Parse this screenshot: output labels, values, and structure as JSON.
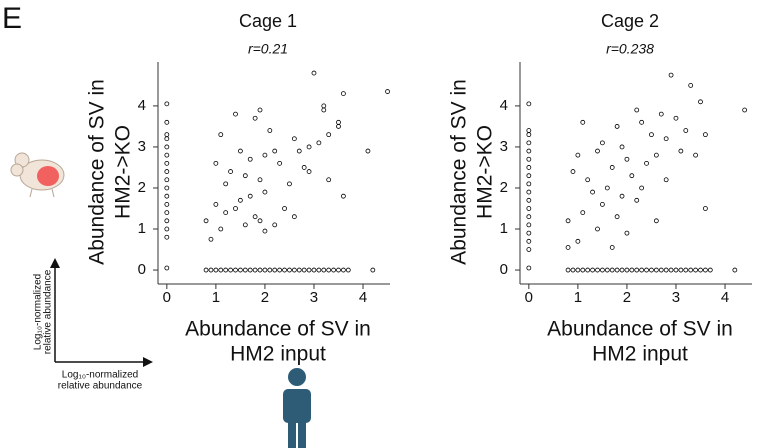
{
  "panel_label": "E",
  "key": {
    "x_label": [
      "Log₁₀-normalized",
      "relative abundance"
    ],
    "y_label": [
      "Log₁₀-normalized",
      "relative abundance"
    ]
  },
  "chart_data": [
    {
      "type": "scatter",
      "title": "Cage 1",
      "subtitle": "r=0.21",
      "xlabel": [
        "Abundance of SV in",
        "HM2 input"
      ],
      "ylabel": [
        "Abundance of SV in",
        "HM2->KO"
      ],
      "xlim": [
        -0.18,
        4.55
      ],
      "ylim": [
        -0.34,
        5.07
      ],
      "xticks": [
        0,
        1,
        2,
        3,
        4
      ],
      "yticks": [
        0,
        1,
        2,
        3,
        4
      ],
      "series": [
        {
          "color": "#000000",
          "x": [
            0,
            0,
            0,
            0,
            0,
            0,
            0,
            0,
            0,
            0,
            0,
            0,
            0,
            0,
            0,
            0,
            0,
            0.8,
            0.9,
            1.0,
            1.1,
            1.2,
            1.3,
            1.4,
            1.5,
            1.6,
            1.7,
            1.8,
            1.9,
            2.0,
            2.1,
            2.2,
            2.3,
            2.4,
            2.5,
            2.6,
            2.7,
            2.8,
            2.9,
            3.0,
            3.1,
            3.2,
            3.3,
            3.4,
            3.5,
            3.6,
            3.7,
            4.2,
            3.0,
            4.5,
            3.6,
            3.2,
            3.2,
            1.9,
            1.4,
            1.8,
            3.5,
            3.5,
            2.1,
            3.3,
            1.1,
            2.6,
            2.2,
            3.1,
            2.9,
            2.0,
            1.5,
            2.7,
            1.7,
            1.0,
            2.3,
            2.8,
            4.1,
            1.3,
            1.6,
            1.9,
            2.5,
            1.2,
            2.0,
            1.7,
            3.3,
            2.9,
            1.0,
            1.4,
            1.5,
            1.2,
            2.4,
            1.8,
            2.6,
            0.8,
            1.1,
            1.9,
            2.2,
            1.6,
            2.0,
            0.9,
            3.6
          ],
          "values": [
            4.05,
            3.6,
            3.3,
            3.2,
            3.0,
            2.8,
            2.6,
            2.4,
            2.2,
            2.0,
            1.8,
            1.6,
            1.4,
            1.2,
            1.0,
            0.8,
            0.05,
            0,
            0,
            0,
            0,
            0,
            0,
            0,
            0,
            0,
            0,
            0,
            0,
            0,
            0,
            0,
            0,
            0,
            0,
            0,
            0,
            0,
            0,
            0,
            0,
            0,
            0,
            0,
            0,
            0,
            0,
            0,
            4.8,
            4.35,
            4.3,
            4.0,
            3.9,
            3.9,
            3.8,
            3.7,
            3.6,
            3.5,
            3.4,
            3.3,
            3.3,
            3.2,
            2.9,
            3.1,
            3.0,
            2.8,
            2.9,
            2.9,
            2.7,
            2.6,
            2.6,
            2.5,
            2.9,
            2.4,
            2.3,
            2.2,
            2.1,
            2.1,
            1.9,
            1.8,
            2.2,
            2.4,
            1.6,
            1.5,
            1.7,
            1.4,
            1.5,
            1.3,
            1.3,
            1.2,
            1.0,
            1.2,
            1.1,
            1.1,
            0.95,
            0.75,
            1.8
          ]
        }
      ]
    },
    {
      "type": "scatter",
      "title": "Cage 2",
      "subtitle": "r=0.238",
      "xlabel": [
        "Abundance of SV in",
        "HM2 input"
      ],
      "ylabel": [
        "Abundance of SV in",
        "HM2->KO"
      ],
      "xlim": [
        -0.18,
        4.55
      ],
      "ylim": [
        -0.34,
        5.07
      ],
      "xticks": [
        0,
        1,
        2,
        3,
        4
      ],
      "yticks": [
        0,
        1,
        2,
        3,
        4
      ],
      "series": [
        {
          "color": "#000000",
          "x": [
            0,
            0,
            0,
            0,
            0,
            0,
            0,
            0,
            0,
            0,
            0,
            0,
            0,
            0,
            0,
            0,
            0,
            0,
            0.8,
            0.9,
            1.0,
            1.1,
            1.2,
            1.3,
            1.4,
            1.5,
            1.6,
            1.7,
            1.8,
            1.9,
            2.0,
            2.1,
            2.2,
            2.3,
            2.4,
            2.5,
            2.6,
            2.7,
            2.8,
            2.9,
            3.0,
            3.1,
            3.2,
            3.3,
            3.4,
            3.5,
            3.6,
            3.7,
            4.2,
            2.9,
            3.3,
            4.4,
            3.5,
            2.7,
            2.2,
            3.0,
            1.1,
            1.8,
            3.2,
            2.5,
            2.3,
            1.5,
            1.9,
            2.8,
            3.6,
            3.1,
            2.6,
            2.0,
            1.4,
            2.4,
            3.4,
            1.7,
            0.9,
            1.2,
            2.1,
            2.8,
            1.6,
            2.3,
            1.0,
            1.3,
            1.9,
            2.2,
            1.5,
            0.8,
            1.1,
            1.8,
            2.6,
            1.4,
            3.6,
            2.0,
            1.0,
            1.7,
            0.8
          ],
          "values": [
            4.05,
            3.4,
            3.3,
            3.1,
            2.9,
            2.7,
            2.5,
            2.3,
            2.1,
            1.9,
            1.7,
            1.5,
            1.3,
            1.1,
            0.9,
            0.7,
            0.5,
            0.05,
            0,
            0,
            0,
            0,
            0,
            0,
            0,
            0,
            0,
            0,
            0,
            0,
            0,
            0,
            0,
            0,
            0,
            0,
            0,
            0,
            0,
            0,
            0,
            0,
            0,
            0,
            0,
            0,
            0,
            0,
            0,
            4.75,
            4.5,
            3.9,
            4.1,
            3.8,
            3.9,
            3.7,
            3.6,
            3.5,
            3.4,
            3.3,
            3.6,
            3.1,
            3.0,
            3.2,
            3.3,
            2.9,
            2.8,
            2.7,
            2.9,
            2.6,
            2.8,
            2.5,
            2.4,
            2.2,
            2.3,
            2.2,
            2.0,
            2.0,
            2.8,
            1.9,
            1.8,
            1.7,
            1.6,
            1.2,
            1.4,
            1.3,
            1.2,
            1.0,
            1.5,
            0.9,
            0.7,
            0.55,
            0.55
          ]
        }
      ]
    }
  ]
}
